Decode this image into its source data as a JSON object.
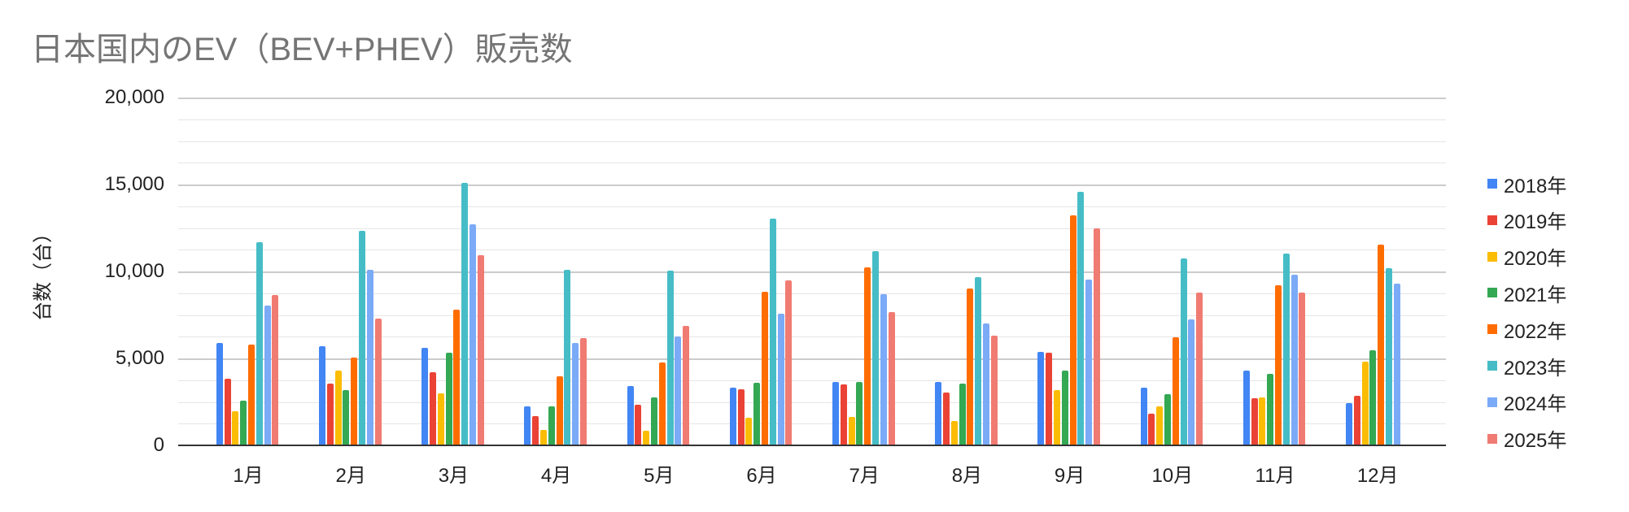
{
  "chart_data": {
    "type": "bar",
    "title": "日本国内のEV（BEV+PHEV）販売数",
    "xlabel": "",
    "ylabel": "台数（台）",
    "ylim": [
      0,
      20000
    ],
    "yticks": [
      "0",
      "5,000",
      "10,000",
      "15,000",
      "20,000"
    ],
    "grid": true,
    "legend_position": "right",
    "categories": [
      "1月",
      "2月",
      "3月",
      "4月",
      "5月",
      "6月",
      "7月",
      "8月",
      "9月",
      "10月",
      "11月",
      "12月"
    ],
    "series": [
      {
        "name": "2018年",
        "color": "#4285f4",
        "values": [
          5900,
          5720,
          5620,
          2260,
          3430,
          3340,
          3660,
          3660,
          5390,
          3340,
          4320,
          2450
        ]
      },
      {
        "name": "2019年",
        "color": "#ea4335",
        "values": [
          3850,
          3540,
          4220,
          1700,
          2320,
          3240,
          3520,
          3050,
          5340,
          1840,
          2730,
          2870
        ]
      },
      {
        "name": "2020年",
        "color": "#fbbc04",
        "values": [
          1950,
          4320,
          3010,
          910,
          860,
          1610,
          1650,
          1420,
          3200,
          2260,
          2780,
          4790
        ]
      },
      {
        "name": "2021年",
        "color": "#34a853",
        "values": [
          2590,
          3160,
          5340,
          2260,
          2740,
          3580,
          3660,
          3570,
          4320,
          2960,
          4130,
          5490
        ]
      },
      {
        "name": "2022年",
        "color": "#ff6d01",
        "values": [
          5780,
          5060,
          7820,
          3990,
          4780,
          8850,
          10250,
          9040,
          13240,
          6230,
          9220,
          11560
        ]
      },
      {
        "name": "2023年",
        "color": "#46bdc6",
        "values": [
          11700,
          12350,
          15110,
          10110,
          10060,
          13060,
          11190,
          9690,
          14600,
          10770,
          11050,
          10210
        ]
      },
      {
        "name": "2024年",
        "color": "#7baaf7",
        "values": [
          8020,
          10080,
          12730,
          5870,
          6250,
          7590,
          8710,
          7030,
          9550,
          7260,
          9790,
          9320
        ]
      },
      {
        "name": "2025年",
        "color": "#f07b72",
        "values": [
          8660,
          7310,
          10950,
          6190,
          6890,
          9500,
          7680,
          6330,
          12490,
          8800,
          8800,
          null
        ]
      }
    ]
  }
}
